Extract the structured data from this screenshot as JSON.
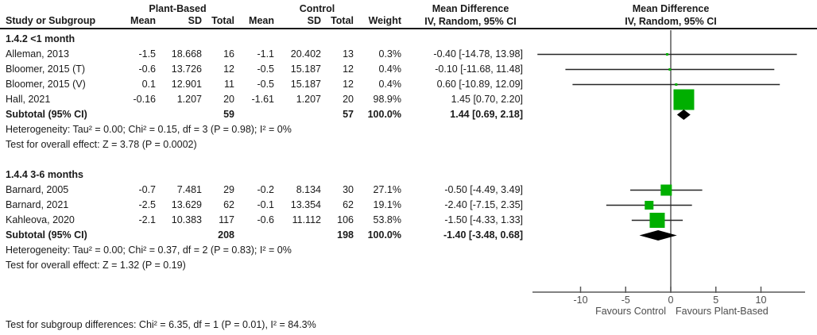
{
  "header": {
    "plant_group": "Plant-Based",
    "control_group": "Control",
    "md_text_title": "Mean Difference",
    "md_text_method": "IV, Random, 95% CI",
    "md_plot_title": "Mean Difference",
    "md_plot_method": "IV, Random, 95% CI",
    "columns": {
      "study": "Study or Subgroup",
      "mean1": "Mean",
      "sd1": "SD",
      "total1": "Total",
      "mean2": "Mean",
      "sd2": "SD",
      "total2": "Total",
      "weight": "Weight"
    }
  },
  "subgroups": [
    {
      "label": "1.4.2 <1 month",
      "studies": [
        {
          "study": "Alleman, 2013",
          "mean1": "-1.5",
          "sd1": "18.668",
          "total1": "16",
          "mean2": "-1.1",
          "sd2": "20.402",
          "total2": "13",
          "weight": "0.3%",
          "ci": "-0.40 [-14.78, 13.98]"
        },
        {
          "study": "Bloomer, 2015 (T)",
          "mean1": "-0.6",
          "sd1": "13.726",
          "total1": "12",
          "mean2": "-0.5",
          "sd2": "15.187",
          "total2": "12",
          "weight": "0.4%",
          "ci": "-0.10 [-11.68, 11.48]"
        },
        {
          "study": "Bloomer, 2015 (V)",
          "mean1": "0.1",
          "sd1": "12.901",
          "total1": "11",
          "mean2": "-0.5",
          "sd2": "15.187",
          "total2": "12",
          "weight": "0.4%",
          "ci": "0.60 [-10.89, 12.09]"
        },
        {
          "study": "Hall, 2021",
          "mean1": "-0.16",
          "sd1": "1.207",
          "total1": "20",
          "mean2": "-1.61",
          "sd2": "1.207",
          "total2": "20",
          "weight": "98.9%",
          "ci": "1.45 [0.70, 2.20]"
        }
      ],
      "subtotal": {
        "label": "Subtotal (95% CI)",
        "total1": "59",
        "total2": "57",
        "weight": "100.0%",
        "ci": "1.44 [0.69, 2.18]"
      },
      "heterogeneity": "Heterogeneity: Tau² = 0.00; Chi² = 0.15, df = 3 (P = 0.98); I² = 0%",
      "overall": "Test for overall effect: Z = 3.78 (P = 0.0002)"
    },
    {
      "label": "1.4.4 3-6 months",
      "studies": [
        {
          "study": "Barnard, 2005",
          "mean1": "-0.7",
          "sd1": "7.481",
          "total1": "29",
          "mean2": "-0.2",
          "sd2": "8.134",
          "total2": "30",
          "weight": "27.1%",
          "ci": "-0.50 [-4.49, 3.49]"
        },
        {
          "study": "Barnard, 2021",
          "mean1": "-2.5",
          "sd1": "13.629",
          "total1": "62",
          "mean2": "-0.1",
          "sd2": "13.354",
          "total2": "62",
          "weight": "19.1%",
          "ci": "-2.40 [-7.15, 2.35]"
        },
        {
          "study": "Kahleova, 2020",
          "mean1": "-2.1",
          "sd1": "10.383",
          "total1": "117",
          "mean2": "-0.6",
          "sd2": "11.112",
          "total2": "106",
          "weight": "53.8%",
          "ci": "-1.50 [-4.33, 1.33]"
        }
      ],
      "subtotal": {
        "label": "Subtotal (95% CI)",
        "total1": "208",
        "total2": "198",
        "weight": "100.0%",
        "ci": "-1.40 [-3.48, 0.68]"
      },
      "heterogeneity": "Heterogeneity: Tau² = 0.00; Chi² = 0.37, df = 2 (P = 0.83); I² = 0%",
      "overall": "Test for overall effect: Z = 1.32 (P = 0.19)"
    }
  ],
  "footer": {
    "subgroup_differences": "Test for subgroup differences: Chi² = 6.35, df = 1 (P = 0.01), I² = 84.3%"
  },
  "chart_data": {
    "type": "forest",
    "effect_measure": "Mean Difference, IV, Random, 95% CI",
    "axis": {
      "min": -15.3,
      "max": 15,
      "ticks": [
        "-10",
        "-5",
        "0",
        "5",
        "10"
      ],
      "tick_values": [
        -10,
        -5,
        0,
        5,
        10
      ],
      "left_label": "Favours Control",
      "right_label": "Favours Plant-Based"
    },
    "colors": {
      "marker": "#00AF00",
      "ci_line": "#262626",
      "axis_line": "#595959",
      "diamond": "#000000",
      "axis_text": "#4d4d4d"
    },
    "groups": [
      {
        "label": "1.4.2 <1 month",
        "studies": [
          {
            "name": "Alleman, 2013",
            "md": -0.4,
            "lo": -14.78,
            "hi": 13.98,
            "weight": 0.3
          },
          {
            "name": "Bloomer, 2015 (T)",
            "md": -0.1,
            "lo": -11.68,
            "hi": 11.48,
            "weight": 0.4
          },
          {
            "name": "Bloomer, 2015 (V)",
            "md": 0.6,
            "lo": -10.89,
            "hi": 12.09,
            "weight": 0.4
          },
          {
            "name": "Hall, 2021",
            "md": 1.45,
            "lo": 0.7,
            "hi": 2.2,
            "weight": 98.9
          }
        ],
        "subtotal": {
          "md": 1.44,
          "lo": 0.69,
          "hi": 2.18
        }
      },
      {
        "label": "1.4.4 3-6 months",
        "studies": [
          {
            "name": "Barnard, 2005",
            "md": -0.5,
            "lo": -4.49,
            "hi": 3.49,
            "weight": 27.1
          },
          {
            "name": "Barnard, 2021",
            "md": -2.4,
            "lo": -7.15,
            "hi": 2.35,
            "weight": 19.1
          },
          {
            "name": "Kahleova, 2020",
            "md": -1.5,
            "lo": -4.33,
            "hi": 1.33,
            "weight": 53.8
          }
        ],
        "subtotal": {
          "md": -1.4,
          "lo": -3.48,
          "hi": 0.68
        }
      }
    ]
  }
}
